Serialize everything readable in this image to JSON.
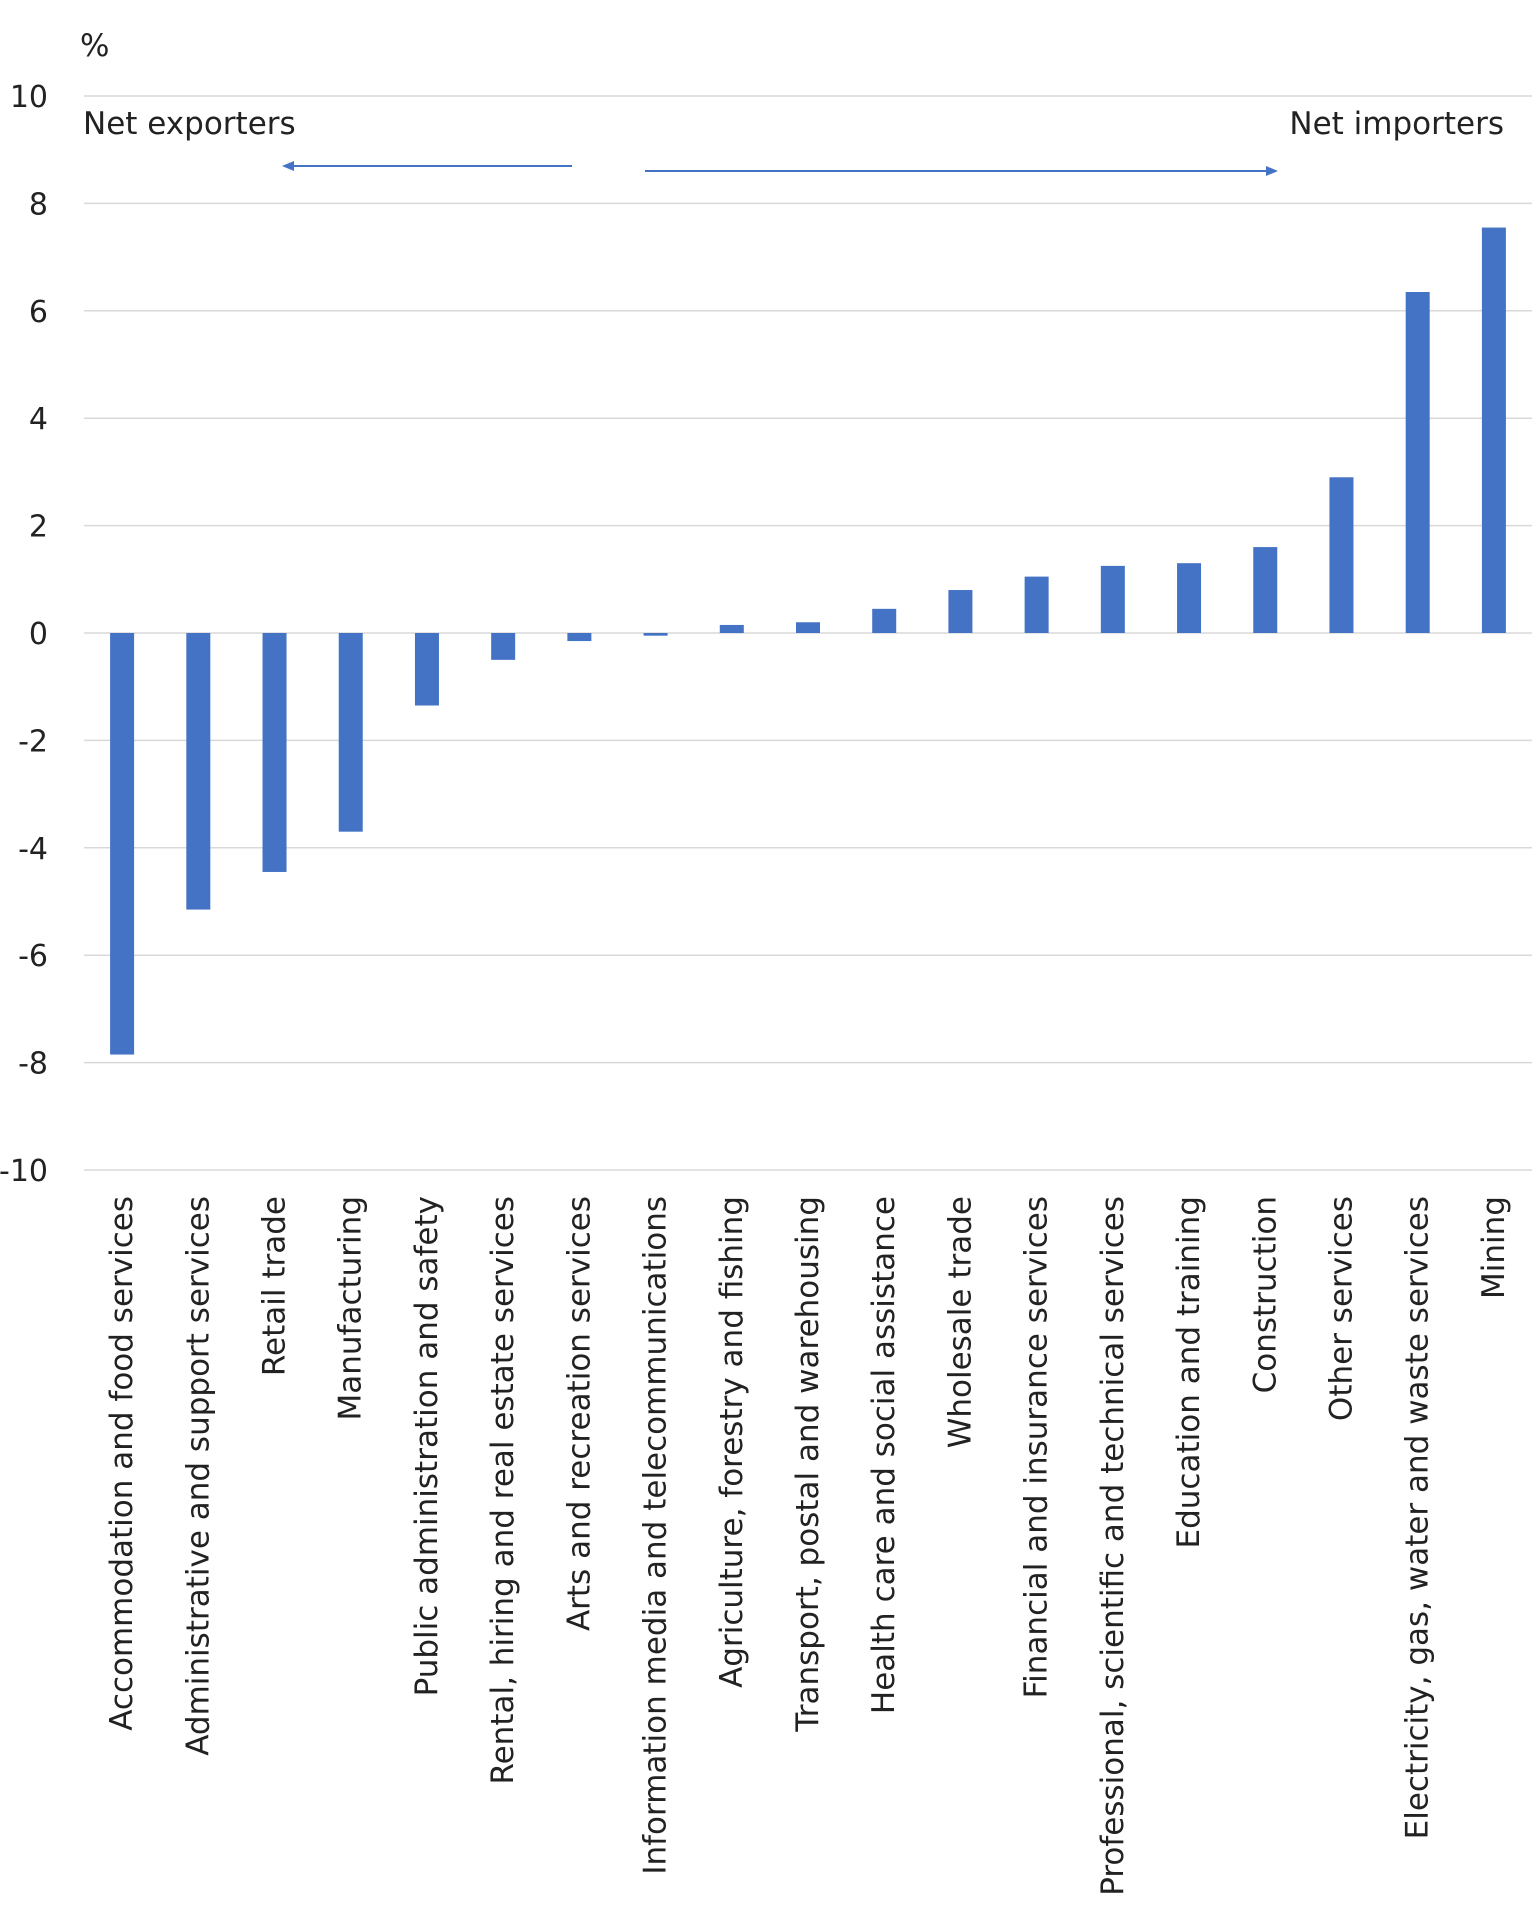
{
  "chart_data": {
    "type": "bar",
    "unit_label": "%",
    "ylim": [
      -10,
      10
    ],
    "yticks": [
      10,
      8,
      6,
      4,
      2,
      0,
      -2,
      -4,
      -6,
      -8,
      -10
    ],
    "grid": true,
    "bar_color": "#4472c4",
    "categories": [
      "Accommodation and food services",
      "Administrative and support services",
      "Retail trade",
      "Manufacturing",
      "Public administration and safety",
      "Rental, hiring and real estate services",
      "Arts and recreation services",
      "Information media and telecommunications",
      "Agriculture, forestry and fishing",
      "Transport, postal and warehousing",
      "Health care and social assistance",
      "Wholesale trade",
      "Financial and insurance services",
      "Professional, scientific and technical services",
      "Education and training",
      "Construction",
      "Other services",
      "Electricity, gas, water and waste services",
      "Mining"
    ],
    "values": [
      -7.85,
      -5.15,
      -4.45,
      -3.7,
      -1.35,
      -0.5,
      -0.15,
      -0.05,
      0.15,
      0.2,
      0.45,
      0.8,
      1.05,
      1.25,
      1.3,
      1.6,
      2.9,
      6.35,
      7.55
    ],
    "annotations": [
      {
        "text": "Net exporters",
        "arrow": "left"
      },
      {
        "text": "Net importers",
        "arrow": "right"
      }
    ]
  }
}
